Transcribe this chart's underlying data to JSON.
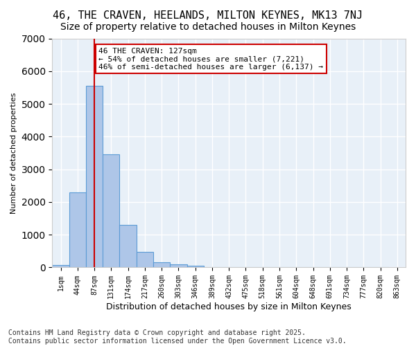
{
  "title1": "46, THE CRAVEN, HEELANDS, MILTON KEYNES, MK13 7NJ",
  "title2": "Size of property relative to detached houses in Milton Keynes",
  "xlabel": "Distribution of detached houses by size in Milton Keynes",
  "ylabel": "Number of detached properties",
  "bar_values": [
    75,
    2300,
    5550,
    3460,
    1310,
    470,
    160,
    90,
    50,
    0,
    0,
    0,
    0,
    0,
    0,
    0,
    0,
    0,
    0,
    0
  ],
  "bin_labels": [
    "1sqm",
    "44sqm",
    "87sqm",
    "131sqm",
    "174sqm",
    "217sqm",
    "260sqm",
    "303sqm",
    "346sqm",
    "389sqm",
    "432sqm",
    "475sqm",
    "518sqm",
    "561sqm",
    "604sqm",
    "648sqm",
    "691sqm",
    "734sqm",
    "777sqm",
    "820sqm"
  ],
  "bar_color": "#aec6e8",
  "bar_edge_color": "#5b9bd5",
  "bg_color": "#e8f0f8",
  "grid_color": "#ffffff",
  "vline_x": 2,
  "vline_color": "#cc0000",
  "annotation_text": "46 THE CRAVEN: 127sqm\n← 54% of detached houses are smaller (7,221)\n46% of semi-detached houses are larger (6,137) →",
  "annotation_box_color": "#cc0000",
  "ylim": [
    0,
    7000
  ],
  "footnote": "Contains HM Land Registry data © Crown copyright and database right 2025.\nContains public sector information licensed under the Open Government Licence v3.0.",
  "title_fontsize": 11,
  "subtitle_fontsize": 10,
  "annotation_fontsize": 8,
  "footnote_fontsize": 7,
  "extra_xtick_label": "863sqm"
}
